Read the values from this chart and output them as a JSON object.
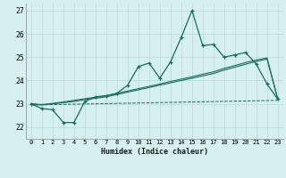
{
  "xlabel": "Humidex (Indice chaleur)",
  "ylabel": "",
  "background_color": "#d6f0ef",
  "grid_color": "#b8d8d5",
  "line_color": "#1a6b5a",
  "xlim": [
    -0.5,
    23.5
  ],
  "ylim": [
    21.5,
    27.3
  ],
  "yticks": [
    22,
    23,
    24,
    25,
    26,
    27
  ],
  "xticks": [
    0,
    1,
    2,
    3,
    4,
    5,
    6,
    7,
    8,
    9,
    10,
    11,
    12,
    13,
    14,
    15,
    16,
    17,
    18,
    19,
    20,
    21,
    22,
    23
  ],
  "line1_x": [
    0,
    1,
    2,
    3,
    4,
    5,
    6,
    7,
    8,
    9,
    10,
    11,
    12,
    13,
    14,
    15,
    16,
    17,
    18,
    19,
    20,
    21,
    22,
    23
  ],
  "line1_y": [
    23.0,
    22.8,
    22.75,
    22.2,
    22.2,
    23.1,
    23.3,
    23.35,
    23.45,
    23.8,
    24.6,
    24.75,
    24.1,
    24.8,
    25.85,
    27.0,
    25.5,
    25.55,
    25.0,
    25.1,
    25.2,
    24.7,
    23.85,
    23.2
  ],
  "line2_x": [
    0,
    1,
    2,
    3,
    4,
    5,
    6,
    7,
    8,
    9,
    10,
    11,
    12,
    13,
    14,
    15,
    16,
    17,
    18,
    19,
    20,
    21,
    22,
    23
  ],
  "line2_y": [
    23.0,
    22.95,
    23.0,
    23.05,
    23.1,
    23.18,
    23.24,
    23.3,
    23.4,
    23.5,
    23.6,
    23.7,
    23.8,
    23.9,
    24.0,
    24.1,
    24.2,
    24.3,
    24.45,
    24.57,
    24.7,
    24.82,
    24.92,
    23.2
  ],
  "line3_x": [
    0,
    1,
    2,
    3,
    4,
    5,
    6,
    7,
    8,
    9,
    10,
    11,
    12,
    13,
    14,
    15,
    16,
    17,
    18,
    19,
    20,
    21,
    22,
    23
  ],
  "line3_y": [
    23.0,
    22.97,
    23.02,
    23.08,
    23.15,
    23.22,
    23.28,
    23.35,
    23.45,
    23.55,
    23.65,
    23.75,
    23.85,
    23.96,
    24.06,
    24.16,
    24.27,
    24.37,
    24.52,
    24.64,
    24.77,
    24.88,
    24.97,
    23.2
  ],
  "line4_x": [
    0,
    23
  ],
  "line4_y": [
    22.95,
    23.15
  ]
}
